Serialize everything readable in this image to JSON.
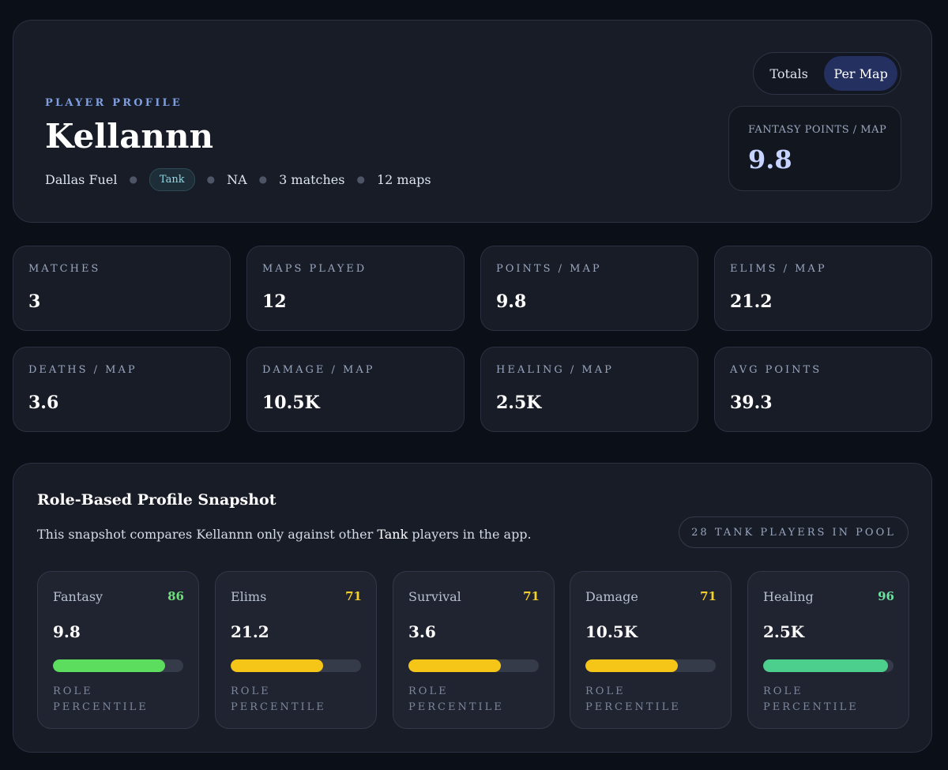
{
  "header": {
    "eyebrow": "PLAYER PROFILE",
    "player_name": "Kellannn",
    "team": "Dallas Fuel",
    "role": "Tank",
    "region": "NA",
    "matches": "3 matches",
    "maps": "12 maps"
  },
  "toggle": {
    "options": [
      "Totals",
      "Per Map"
    ],
    "selected": "Per Map"
  },
  "fantasy_card": {
    "label": "FANTASY POINTS / MAP",
    "value": "9.8"
  },
  "stats": [
    {
      "label": "MATCHES",
      "value": "3"
    },
    {
      "label": "MAPS PLAYED",
      "value": "12"
    },
    {
      "label": "POINTS / MAP",
      "value": "9.8"
    },
    {
      "label": "ELIMS / MAP",
      "value": "21.2"
    },
    {
      "label": "DEATHS / MAP",
      "value": "3.6"
    },
    {
      "label": "DAMAGE / MAP",
      "value": "10.5K"
    },
    {
      "label": "HEALING / MAP",
      "value": "2.5K"
    },
    {
      "label": "AVG POINTS",
      "value": "39.3"
    }
  ],
  "snapshot": {
    "title": "Role-Based Profile Snapshot",
    "desc_prefix": "This snapshot compares Kellannn only against other",
    "desc_role": "Tank",
    "desc_suffix": "players in the app.",
    "pool_label": "28 TANK PLAYERS IN POOL",
    "cards": [
      {
        "name": "Fantasy",
        "score": "86",
        "value": "9.8",
        "percentile": 0.86,
        "color": "#5ddd5d",
        "score_color": "#6ee07a",
        "footer": "ROLE PERCENTILE"
      },
      {
        "name": "Elims",
        "score": "71",
        "value": "21.2",
        "percentile": 0.71,
        "color": "#f5c518",
        "score_color": "#f5d02a",
        "footer": "ROLE PERCENTILE"
      },
      {
        "name": "Survival",
        "score": "71",
        "value": "3.6",
        "percentile": 0.71,
        "color": "#f5c518",
        "score_color": "#f5d02a",
        "footer": "ROLE PERCENTILE"
      },
      {
        "name": "Damage",
        "score": "71",
        "value": "10.5K",
        "percentile": 0.71,
        "color": "#f5c518",
        "score_color": "#f5d02a",
        "footer": "ROLE PERCENTILE"
      },
      {
        "name": "Healing",
        "score": "96",
        "value": "2.5K",
        "percentile": 0.96,
        "color": "#4ccf8c",
        "score_color": "#6ee0a0",
        "footer": "ROLE PERCENTILE"
      }
    ]
  }
}
